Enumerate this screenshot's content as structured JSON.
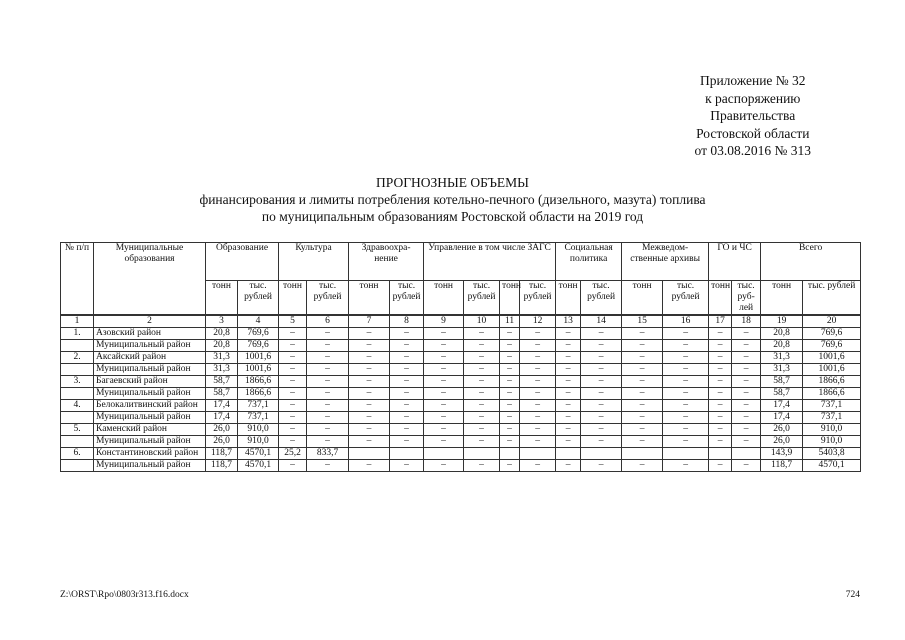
{
  "appendix": {
    "line1": "Приложение № 32",
    "line2": "к распоряжению",
    "line3": "Правительства",
    "line4": "Ростовской области",
    "line5": "от 03.08.2016 № 313"
  },
  "title": {
    "line1": "ПРОГНОЗНЫЕ ОБЪЕМЫ",
    "line2": "финансирования и лимиты потребления котельно-печного (дизельного, мазута) топлива",
    "line3": "по муниципальным образованиям Ростовской области на 2019 год"
  },
  "table": {
    "col_num": "№ п/п",
    "col_name": "Муниципальные образования",
    "groups": [
      "Образование",
      "Культура",
      "Здравоохра-нение",
      "Управление в том числе ЗАГС",
      "Социальная политика",
      "Межведом-ственные архивы",
      "ГО и ЧС",
      "Всего"
    ],
    "subheaders": [
      "тонн",
      "тыс. рублей",
      "тонн",
      "тыс. рублей",
      "тонн",
      "тыс. рублей",
      "тонн",
      "тыс. рублей",
      "тонн",
      "тыс. рублей",
      "тонн",
      "тыс. рублей",
      "тонн",
      "тыс. рублей",
      "тонн",
      "тыс. руб-лей",
      "тонн",
      "тыс. рублей"
    ],
    "column_numbers": [
      "1",
      "2",
      "3",
      "4",
      "5",
      "6",
      "7",
      "8",
      "9",
      "10",
      "11",
      "12",
      "13",
      "14",
      "15",
      "16",
      "17",
      "18",
      "19",
      "20"
    ],
    "rows": [
      {
        "num": "1.",
        "name": "Азовский район",
        "values": [
          "20,8",
          "769,6",
          "–",
          "–",
          "–",
          "–",
          "–",
          "–",
          "–",
          "–",
          "–",
          "–",
          "–",
          "–",
          "–",
          "–",
          "20,8",
          "769,6"
        ]
      },
      {
        "num": "",
        "name": "Муниципальный район",
        "values": [
          "20,8",
          "769,6",
          "–",
          "–",
          "–",
          "–",
          "–",
          "–",
          "–",
          "–",
          "–",
          "–",
          "–",
          "–",
          "–",
          "–",
          "20,8",
          "769,6"
        ]
      },
      {
        "num": "2.",
        "name": "Аксайский район",
        "values": [
          "31,3",
          "1001,6",
          "–",
          "–",
          "–",
          "–",
          "–",
          "–",
          "–",
          "–",
          "–",
          "–",
          "–",
          "–",
          "–",
          "–",
          "31,3",
          "1001,6"
        ]
      },
      {
        "num": "",
        "name": "Муниципальный район",
        "values": [
          "31,3",
          "1001,6",
          "–",
          "–",
          "–",
          "–",
          "–",
          "–",
          "–",
          "–",
          "–",
          "–",
          "–",
          "–",
          "–",
          "–",
          "31,3",
          "1001,6"
        ]
      },
      {
        "num": "3.",
        "name": "Багаевский район",
        "values": [
          "58,7",
          "1866,6",
          "–",
          "–",
          "–",
          "–",
          "–",
          "–",
          "–",
          "–",
          "–",
          "–",
          "–",
          "–",
          "–",
          "–",
          "58,7",
          "1866,6"
        ]
      },
      {
        "num": "",
        "name": "Муниципальный район",
        "values": [
          "58,7",
          "1866,6",
          "–",
          "–",
          "–",
          "–",
          "–",
          "–",
          "–",
          "–",
          "–",
          "–",
          "–",
          "–",
          "–",
          "–",
          "58,7",
          "1866,6"
        ]
      },
      {
        "num": "4.",
        "name": "Белокалитвинский район",
        "values": [
          "17,4",
          "737,1",
          "–",
          "–",
          "–",
          "–",
          "–",
          "–",
          "–",
          "–",
          "–",
          "–",
          "–",
          "–",
          "–",
          "–",
          "17,4",
          "737,1"
        ]
      },
      {
        "num": "",
        "name": "Муниципальный район",
        "values": [
          "17,4",
          "737,1",
          "–",
          "–",
          "–",
          "–",
          "–",
          "–",
          "–",
          "–",
          "–",
          "–",
          "–",
          "–",
          "–",
          "–",
          "17,4",
          "737,1"
        ]
      },
      {
        "num": "5.",
        "name": "Каменский район",
        "values": [
          "26,0",
          "910,0",
          "–",
          "–",
          "–",
          "–",
          "–",
          "–",
          "–",
          "–",
          "–",
          "–",
          "–",
          "–",
          "–",
          "–",
          "26,0",
          "910,0"
        ]
      },
      {
        "num": "",
        "name": "Муниципальный район",
        "values": [
          "26,0",
          "910,0",
          "–",
          "–",
          "–",
          "–",
          "–",
          "–",
          "–",
          "–",
          "–",
          "–",
          "–",
          "–",
          "–",
          "–",
          "26,0",
          "910,0"
        ]
      },
      {
        "num": "6.",
        "name": "Константиновский район",
        "values": [
          "118,7",
          "4570,1",
          "25,2",
          "833,7",
          "",
          "",
          "",
          "",
          "",
          "",
          "",
          "",
          "",
          "",
          "",
          "",
          "143,9",
          "5403,8"
        ]
      },
      {
        "num": "",
        "name": "Муниципальный район",
        "values": [
          "118,7",
          "4570,1",
          "–",
          "–",
          "–",
          "–",
          "–",
          "–",
          "–",
          "–",
          "–",
          "–",
          "–",
          "–",
          "–",
          "–",
          "118,7",
          "4570,1"
        ]
      }
    ]
  },
  "footer": {
    "file_path": "Z:\\ORST\\Rpo\\0803r313.f16.docx",
    "page_number": "724"
  }
}
